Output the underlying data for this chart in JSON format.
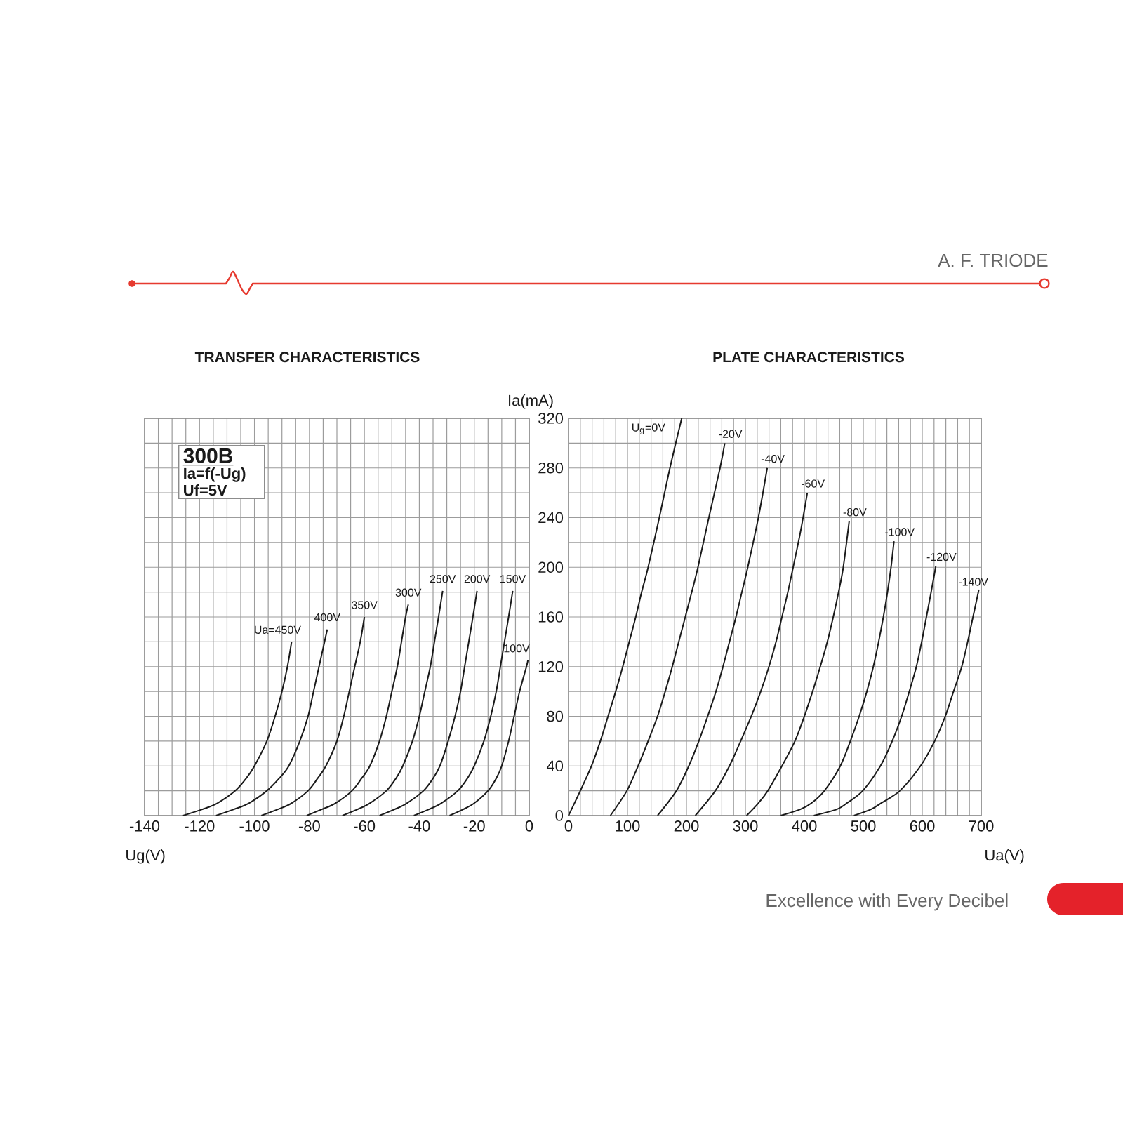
{
  "chart_data": [
    {
      "type": "line",
      "title": "TRANSFER CHARACTERISTICS",
      "xlabel": "Ug(V)",
      "xlim": [
        -140,
        0
      ],
      "xticks": [
        -140,
        {
          "value": -135,
          "label": null
        },
        {
          "value": -130,
          "label": null
        },
        {
          "value": -125,
          "label": null
        },
        -120,
        {
          "value": -115,
          "label": null
        },
        {
          "value": -110,
          "label": null
        },
        {
          "value": -105,
          "label": null
        },
        -100,
        {
          "value": -95,
          "label": null
        },
        {
          "value": -90,
          "label": null
        },
        {
          "value": -85,
          "label": null
        },
        -80,
        {
          "value": -75,
          "label": null
        },
        {
          "value": -70,
          "label": null
        },
        {
          "value": -65,
          "label": null
        },
        -60,
        {
          "value": -55,
          "label": null
        },
        {
          "value": -50,
          "label": null
        },
        {
          "value": -45,
          "label": null
        },
        -40,
        {
          "value": -35,
          "label": null
        },
        {
          "value": -30,
          "label": null
        },
        {
          "value": -25,
          "label": null
        },
        -20,
        {
          "value": -15,
          "label": null
        },
        {
          "value": -10,
          "label": null
        },
        {
          "value": -5,
          "label": null
        },
        0
      ],
      "ylim": [
        0,
        320
      ],
      "yticks": [
        0,
        {
          "value": 20,
          "label": null
        },
        40,
        {
          "value": 60,
          "label": null
        },
        80,
        {
          "value": 100,
          "label": null
        },
        120,
        {
          "value": 140,
          "label": null
        },
        160,
        {
          "value": 180,
          "label": null
        },
        200,
        {
          "value": 220,
          "label": null
        },
        240,
        {
          "value": 260,
          "label": null
        },
        280,
        {
          "value": 300,
          "label": null
        },
        320
      ],
      "tick_labels": "x",
      "grid": true,
      "annotations": [
        "300B",
        "Ia=f(-Ug)",
        "Uf=5V"
      ],
      "series": [
        {
          "name": "Ua=450V",
          "color": "#1a1a1a",
          "x": [
            -126,
            -119,
            -113.5,
            -107,
            -103,
            -100,
            -95.5,
            -92.5,
            -90,
            -88,
            -86.5
          ],
          "values": [
            0,
            5,
            10,
            20,
            30,
            40,
            60,
            80,
            100,
            120,
            140
          ]
        },
        {
          "name": "400V",
          "color": "#1a1a1a",
          "x": [
            -114,
            -107.5,
            -102,
            -95.5,
            -91,
            -87.5,
            -83.5,
            -80.5,
            -78.5,
            -76.5,
            -74.5,
            -73.5
          ],
          "values": [
            0,
            5,
            10,
            20,
            30,
            40,
            60,
            80,
            100,
            120,
            140,
            150
          ]
        },
        {
          "name": "350V",
          "color": "#1a1a1a",
          "x": [
            -97.5,
            -91.5,
            -86.5,
            -80.5,
            -77,
            -74,
            -70,
            -67.5,
            -65.5,
            -63.5,
            -61.5,
            -60
          ],
          "values": [
            0,
            5,
            10,
            20,
            30,
            40,
            60,
            80,
            100,
            120,
            140,
            160
          ]
        },
        {
          "name": "300V",
          "color": "#1a1a1a",
          "x": [
            -81,
            -75.5,
            -70.5,
            -64.5,
            -61,
            -58,
            -54.5,
            -52,
            -50,
            -48,
            -46.5,
            -45,
            -44
          ],
          "values": [
            0,
            5,
            10,
            20,
            30,
            40,
            60,
            80,
            100,
            120,
            140,
            160,
            170
          ]
        },
        {
          "name": "250V",
          "color": "#1a1a1a",
          "x": [
            -68,
            -62.5,
            -58,
            -52,
            -48.5,
            -46,
            -42.5,
            -40,
            -38,
            -36,
            -34.5,
            -33,
            -31.5
          ],
          "values": [
            0,
            5,
            10,
            20,
            30,
            40,
            60,
            80,
            100,
            120,
            140,
            160,
            181
          ]
        },
        {
          "name": "200V",
          "color": "#1a1a1a",
          "x": [
            -54.5,
            -49,
            -44.5,
            -38.5,
            -35,
            -32.5,
            -29.5,
            -27,
            -25,
            -23.5,
            -22,
            -20.5,
            -19
          ],
          "values": [
            0,
            5,
            10,
            20,
            30,
            40,
            60,
            80,
            100,
            120,
            140,
            160,
            181
          ]
        },
        {
          "name": "150V",
          "color": "#1a1a1a",
          "x": [
            -42,
            -36.5,
            -32,
            -26,
            -22.5,
            -20,
            -16.5,
            -14,
            -12,
            -10.5,
            -9,
            -7.5,
            -6
          ],
          "values": [
            0,
            5,
            10,
            20,
            30,
            40,
            60,
            80,
            100,
            120,
            140,
            160,
            181
          ]
        },
        {
          "name": "100V",
          "color": "#1a1a1a",
          "x": [
            -29,
            -24,
            -20,
            -15,
            -12,
            -10,
            -7.5,
            -5.5,
            -3.5,
            -1,
            -0.5
          ],
          "values": [
            0,
            5,
            10,
            20,
            30,
            40,
            60,
            80,
            100,
            120,
            125
          ]
        }
      ]
    },
    {
      "type": "line",
      "title": "PLATE CHARACTERISTICS",
      "xlabel": "Ua(V)",
      "ylabel": "Ia(mA)",
      "xlim": [
        0,
        700
      ],
      "xticks": [
        0,
        {
          "value": 20,
          "label": null
        },
        {
          "value": 40,
          "label": null
        },
        {
          "value": 60,
          "label": null
        },
        {
          "value": 80,
          "label": null
        },
        100,
        {
          "value": 120,
          "label": null
        },
        {
          "value": 140,
          "label": null
        },
        {
          "value": 160,
          "label": null
        },
        {
          "value": 180,
          "label": null
        },
        200,
        {
          "value": 220,
          "label": null
        },
        {
          "value": 240,
          "label": null
        },
        {
          "value": 260,
          "label": null
        },
        {
          "value": 280,
          "label": null
        },
        300,
        {
          "value": 320,
          "label": null
        },
        {
          "value": 340,
          "label": null
        },
        {
          "value": 360,
          "label": null
        },
        {
          "value": 380,
          "label": null
        },
        400,
        {
          "value": 420,
          "label": null
        },
        {
          "value": 440,
          "label": null
        },
        {
          "value": 460,
          "label": null
        },
        {
          "value": 480,
          "label": null
        },
        500,
        {
          "value": 520,
          "label": null
        },
        {
          "value": 540,
          "label": null
        },
        {
          "value": 560,
          "label": null
        },
        {
          "value": 580,
          "label": null
        },
        600,
        {
          "value": 620,
          "label": null
        },
        {
          "value": 640,
          "label": null
        },
        {
          "value": 660,
          "label": null
        },
        {
          "value": 680,
          "label": null
        },
        700
      ],
      "ylim": [
        0,
        320
      ],
      "yticks": [
        0,
        {
          "value": 20,
          "label": null
        },
        40,
        {
          "value": 60,
          "label": null
        },
        80,
        {
          "value": 100,
          "label": null
        },
        120,
        {
          "value": 140,
          "label": null
        },
        160,
        {
          "value": 180,
          "label": null
        },
        200,
        {
          "value": 220,
          "label": null
        },
        240,
        {
          "value": 260,
          "label": null
        },
        280,
        {
          "value": 300,
          "label": null
        },
        320
      ],
      "grid": true,
      "annotations": [
        "A. F. TRIODE",
        "Excellence with Every Decibel"
      ],
      "series": [
        {
          "name": "U$_{g}$=0V",
          "color": "#1a1a1a",
          "x": [
            0,
            20,
            39,
            54,
            67,
            80,
            92,
            103,
            114,
            124,
            135,
            154,
            172,
            192
          ],
          "values": [
            0,
            20,
            40,
            60,
            80,
            100,
            120,
            140,
            160,
            180,
            200,
            240,
            280,
            320
          ]
        },
        {
          "name": "-20V",
          "color": "#1a1a1a",
          "x": [
            71,
            99,
            118,
            135,
            151,
            164,
            176,
            187,
            198,
            209,
            219.5,
            238,
            257,
            265
          ],
          "values": [
            0,
            20,
            40,
            60,
            80,
            100,
            120,
            140,
            160,
            180,
            200,
            240,
            280,
            300
          ]
        },
        {
          "name": "-40V",
          "color": "#1a1a1a",
          "x": [
            151,
            183,
            204,
            221,
            236,
            250,
            262,
            273,
            284,
            294,
            304,
            322,
            337
          ],
          "values": [
            0,
            20,
            40,
            60,
            80,
            100,
            120,
            140,
            160,
            180,
            200,
            240,
            280
          ]
        },
        {
          "name": "-60V",
          "color": "#1a1a1a",
          "x": [
            215,
            249,
            273,
            292,
            310,
            326,
            340,
            352,
            362,
            372,
            381,
            394,
            405
          ],
          "values": [
            0,
            20,
            40,
            60,
            80,
            100,
            120,
            140,
            160,
            180,
            200,
            230,
            260
          ]
        },
        {
          "name": "-80V",
          "color": "#1a1a1a",
          "x": [
            302,
            322,
            338,
            362,
            384,
            400,
            414,
            427,
            439,
            449,
            458,
            466,
            476
          ],
          "values": [
            0,
            10,
            20,
            40,
            60,
            80,
            100,
            120,
            140,
            160,
            180,
            200,
            237
          ]
        },
        {
          "name": "-100V",
          "color": "#1a1a1a",
          "x": [
            360,
            393,
            412,
            434,
            461,
            478,
            493,
            506,
            517,
            526,
            534,
            541,
            547,
            552
          ],
          "values": [
            0,
            5,
            10,
            20,
            40,
            60,
            80,
            100,
            120,
            140,
            160,
            180,
            200,
            221
          ]
        },
        {
          "name": "-120V",
          "color": "#1a1a1a",
          "x": [
            416,
            455,
            472,
            499,
            529,
            549,
            565,
            578,
            590,
            599,
            607,
            615,
            623
          ],
          "values": [
            0,
            5,
            10,
            20,
            40,
            60,
            80,
            100,
            120,
            140,
            160,
            180,
            201
          ]
        },
        {
          "name": "-140V",
          "color": "#1a1a1a",
          "x": [
            484,
            513,
            530,
            562,
            597,
            621,
            639,
            653,
            667,
            677,
            686,
            696
          ],
          "values": [
            0,
            5,
            10,
            20,
            40,
            60,
            80,
            100,
            120,
            140,
            160,
            182
          ]
        }
      ]
    }
  ]
}
